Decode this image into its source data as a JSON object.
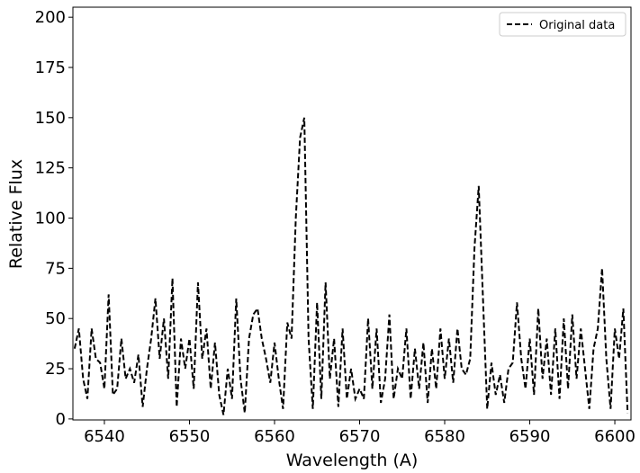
{
  "chart_data": {
    "type": "line",
    "xlabel": "Wavelength (A)",
    "ylabel": "Relative Flux",
    "x": [
      6536.5,
      6537,
      6537.5,
      6538,
      6538.5,
      6539,
      6539.5,
      6540,
      6540.5,
      6541,
      6541.5,
      6542,
      6542.5,
      6543,
      6543.5,
      6544,
      6544.5,
      6545,
      6545.5,
      6546,
      6546.5,
      6547,
      6547.5,
      6548,
      6548.5,
      6549,
      6549.5,
      6550,
      6550.5,
      6551,
      6551.5,
      6552,
      6552.5,
      6553,
      6553.5,
      6554,
      6554.5,
      6555,
      6555.5,
      6556,
      6556.5,
      6557,
      6557.5,
      6558,
      6558.5,
      6559,
      6559.5,
      6560,
      6560.5,
      6561,
      6561.5,
      6562,
      6562.5,
      6563,
      6563.5,
      6564,
      6564.5,
      6565,
      6565.5,
      6566,
      6566.5,
      6567,
      6567.5,
      6568,
      6568.5,
      6569,
      6569.5,
      6570,
      6570.5,
      6571,
      6571.5,
      6572,
      6572.5,
      6573,
      6573.5,
      6574,
      6574.5,
      6575,
      6575.5,
      6576,
      6576.5,
      6577,
      6577.5,
      6578,
      6578.5,
      6579,
      6579.5,
      6580,
      6580.5,
      6581,
      6581.5,
      6582,
      6582.5,
      6583,
      6583.5,
      6584,
      6584.5,
      6585,
      6585.5,
      6586,
      6586.5,
      6587,
      6587.5,
      6588,
      6588.5,
      6589,
      6589.5,
      6590,
      6590.5,
      6591,
      6591.5,
      6592,
      6592.5,
      6593,
      6593.5,
      6594,
      6594.5,
      6595,
      6595.5,
      6596,
      6596.5,
      6597,
      6597.5,
      6598,
      6598.5,
      6599,
      6599.5,
      6600,
      6600.5,
      6601,
      6601.5
    ],
    "series": [
      {
        "name": "Original data",
        "color": "#000000",
        "dashed": true,
        "values": [
          35,
          45,
          20,
          10,
          45,
          30,
          28,
          15,
          62,
          12,
          15,
          40,
          20,
          25,
          18,
          32,
          6,
          25,
          40,
          60,
          30,
          50,
          20,
          70,
          6,
          40,
          25,
          40,
          15,
          68,
          30,
          45,
          15,
          38,
          12,
          2,
          25,
          10,
          60,
          20,
          3,
          40,
          52,
          55,
          40,
          30,
          18,
          38,
          20,
          5,
          48,
          40,
          100,
          140,
          150,
          40,
          5,
          58,
          10,
          68,
          20,
          40,
          6,
          45,
          10,
          25,
          10,
          15,
          10,
          50,
          15,
          45,
          8,
          20,
          52,
          10,
          25,
          20,
          45,
          10,
          35,
          15,
          38,
          8,
          35,
          15,
          45,
          20,
          40,
          18,
          45,
          25,
          22,
          30,
          85,
          116,
          60,
          5,
          28,
          12,
          22,
          8,
          25,
          28,
          58,
          30,
          15,
          40,
          12,
          55,
          20,
          40,
          12,
          45,
          10,
          50,
          15,
          52,
          20,
          45,
          25,
          5,
          35,
          45,
          75,
          30,
          5,
          45,
          30,
          55,
          3
        ]
      }
    ],
    "xlim": [
      6536.3,
      6601.9
    ],
    "xticks": [
      6540,
      6550,
      6560,
      6570,
      6580,
      6590,
      6600
    ],
    "ylim": [
      -0.5,
      205
    ],
    "yticks": [
      0,
      25,
      50,
      75,
      100,
      125,
      150,
      175,
      200
    ],
    "legend": "upper right"
  }
}
